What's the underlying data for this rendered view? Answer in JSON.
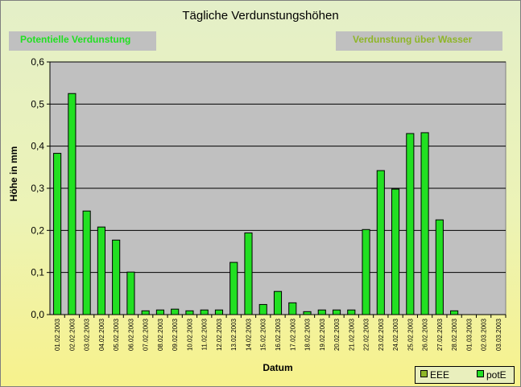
{
  "chart_data": {
    "type": "bar",
    "title": "Tägliche Verdunstungshöhen",
    "xlabel": "Datum",
    "ylabel": "Höhe in mm",
    "ylim": [
      0,
      0.6
    ],
    "yticks": [
      "0,0",
      "0,1",
      "0,2",
      "0,3",
      "0,4",
      "0,5",
      "0,6"
    ],
    "grid": true,
    "legend_position": "bottom-right",
    "categories": [
      "01.02.2003",
      "02.02.2003",
      "03.02.2003",
      "04.02.2003",
      "05.02.2003",
      "06.02.2003",
      "07.02.2003",
      "08.02.2003",
      "09.02.2003",
      "10.02.2003",
      "11.02.2003",
      "12.02.2003",
      "13.02.2003",
      "14.02.2003",
      "15.02.2003",
      "16.02.2003",
      "17.02.2003",
      "18.02.2003",
      "19.02.2003",
      "20.02.2003",
      "21.02.2003",
      "22.02.2003",
      "23.02.2003",
      "24.02.2003",
      "25.02.2003",
      "26.02.2003",
      "27.02.2003",
      "28.02.2003",
      "01.03.2003",
      "02.03.2003",
      "03.03.2003"
    ],
    "series": [
      {
        "name": "EEE",
        "color": "#8fb628",
        "values": [
          null,
          null,
          null,
          null,
          null,
          null,
          null,
          null,
          null,
          null,
          null,
          null,
          null,
          null,
          null,
          null,
          null,
          null,
          null,
          null,
          null,
          null,
          null,
          null,
          null,
          null,
          null,
          null,
          null,
          null,
          null
        ]
      },
      {
        "name": "potE",
        "color": "#22e022",
        "values": [
          0.383,
          0.525,
          0.246,
          0.208,
          0.177,
          0.101,
          0.009,
          0.011,
          0.013,
          0.009,
          0.011,
          0.011,
          0.124,
          0.194,
          0.024,
          0.055,
          0.028,
          0.007,
          0.011,
          0.011,
          0.011,
          0.202,
          0.342,
          0.298,
          0.43,
          0.432,
          0.225,
          0.009,
          null,
          null,
          null
        ]
      }
    ]
  },
  "header_buttons": {
    "left_label": "Potentielle Verdunstung",
    "right_label": "Verdunstung über Wasser"
  },
  "colors": {
    "plot_background": "#c0c0c0",
    "bar": "#22e022",
    "eee": "#8fb628",
    "left_button_text": "#22e022",
    "right_button_text": "#8fb628"
  }
}
